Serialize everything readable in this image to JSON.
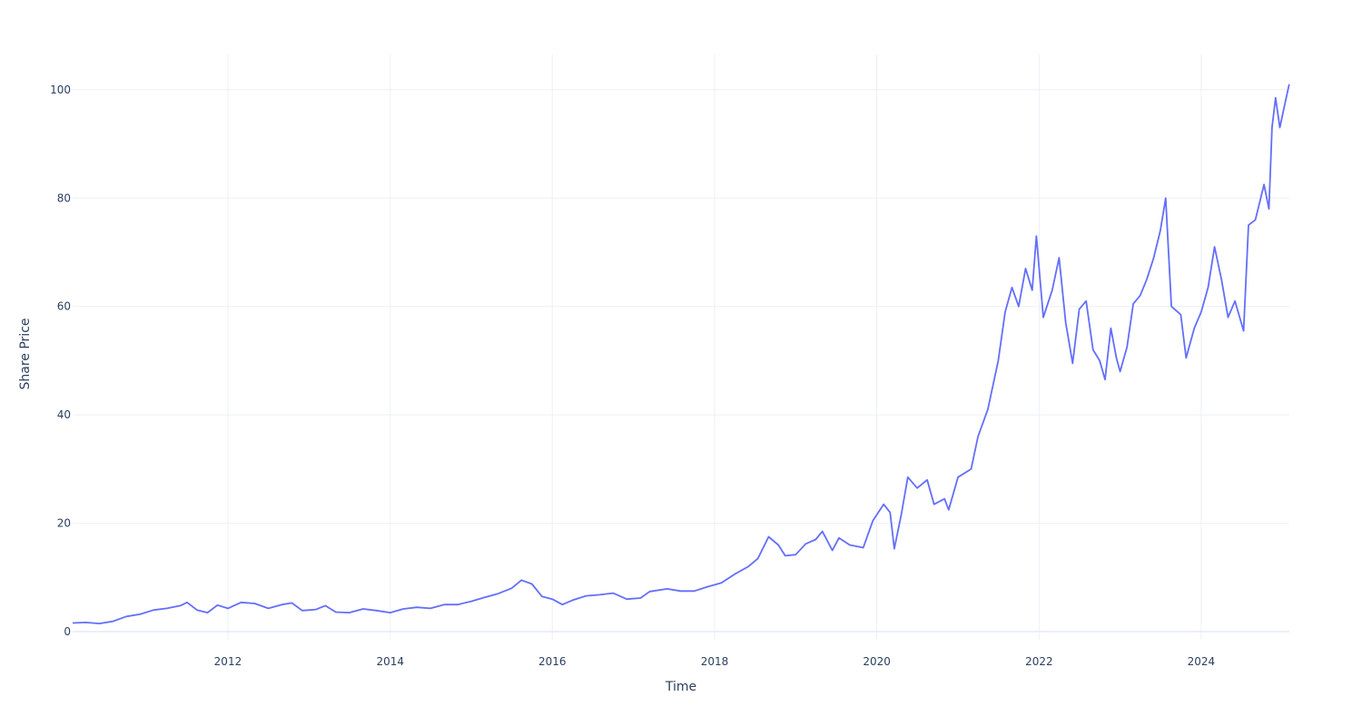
{
  "chart_data": {
    "type": "line",
    "title": "",
    "xlabel": "Time",
    "ylabel": "Share Price",
    "xlim": [
      "2010-02-01",
      "2025-02-01"
    ],
    "ylim": [
      -1.5,
      106.5
    ],
    "x_ticks": [
      "2012",
      "2014",
      "2016",
      "2018",
      "2020",
      "2022",
      "2024"
    ],
    "y_ticks": [
      "0",
      "20",
      "40",
      "60",
      "80",
      "100"
    ],
    "grid": true,
    "line_color": "#636efa",
    "series": [
      {
        "name": "",
        "points": [
          [
            "2010-02-01",
            1.6
          ],
          [
            "2010-04-01",
            1.7
          ],
          [
            "2010-06-01",
            1.5
          ],
          [
            "2010-08-01",
            1.9
          ],
          [
            "2010-10-01",
            2.8
          ],
          [
            "2010-12-01",
            3.2
          ],
          [
            "2011-02-01",
            4.0
          ],
          [
            "2011-04-01",
            4.3
          ],
          [
            "2011-06-01",
            4.8
          ],
          [
            "2011-07-01",
            5.4
          ],
          [
            "2011-08-15",
            4.0
          ],
          [
            "2011-10-01",
            3.5
          ],
          [
            "2011-11-15",
            4.9
          ],
          [
            "2012-01-01",
            4.3
          ],
          [
            "2012-03-01",
            5.4
          ],
          [
            "2012-05-01",
            5.2
          ],
          [
            "2012-07-01",
            4.3
          ],
          [
            "2012-09-01",
            5.0
          ],
          [
            "2012-10-15",
            5.3
          ],
          [
            "2012-12-01",
            3.9
          ],
          [
            "2013-02-01",
            4.1
          ],
          [
            "2013-03-15",
            4.8
          ],
          [
            "2013-05-01",
            3.6
          ],
          [
            "2013-07-01",
            3.5
          ],
          [
            "2013-09-01",
            4.2
          ],
          [
            "2013-11-01",
            3.9
          ],
          [
            "2014-01-01",
            3.5
          ],
          [
            "2014-03-01",
            4.2
          ],
          [
            "2014-05-01",
            4.5
          ],
          [
            "2014-07-01",
            4.3
          ],
          [
            "2014-09-01",
            5.0
          ],
          [
            "2014-11-01",
            5.0
          ],
          [
            "2015-01-01",
            5.6
          ],
          [
            "2015-03-01",
            6.3
          ],
          [
            "2015-05-01",
            7.0
          ],
          [
            "2015-07-01",
            8.0
          ],
          [
            "2015-08-15",
            9.5
          ],
          [
            "2015-10-01",
            8.8
          ],
          [
            "2015-11-15",
            6.5
          ],
          [
            "2016-01-01",
            6.0
          ],
          [
            "2016-02-15",
            5.0
          ],
          [
            "2016-04-01",
            5.8
          ],
          [
            "2016-06-01",
            6.6
          ],
          [
            "2016-08-01",
            6.8
          ],
          [
            "2016-10-01",
            7.1
          ],
          [
            "2016-12-01",
            6.0
          ],
          [
            "2017-02-01",
            6.2
          ],
          [
            "2017-03-15",
            7.4
          ],
          [
            "2017-06-01",
            7.9
          ],
          [
            "2017-08-01",
            7.5
          ],
          [
            "2017-10-01",
            7.5
          ],
          [
            "2017-12-01",
            8.3
          ],
          [
            "2018-02-01",
            9.0
          ],
          [
            "2018-04-01",
            10.6
          ],
          [
            "2018-06-01",
            12.0
          ],
          [
            "2018-07-15",
            13.5
          ],
          [
            "2018-09-01",
            17.5
          ],
          [
            "2018-10-15",
            16.0
          ],
          [
            "2018-11-15",
            14.0
          ],
          [
            "2019-01-01",
            14.2
          ],
          [
            "2019-02-15",
            16.2
          ],
          [
            "2019-04-01",
            17.0
          ],
          [
            "2019-05-01",
            18.5
          ],
          [
            "2019-06-15",
            15.0
          ],
          [
            "2019-07-15",
            17.3
          ],
          [
            "2019-09-01",
            16.0
          ],
          [
            "2019-11-01",
            15.5
          ],
          [
            "2019-12-15",
            20.5
          ],
          [
            "2020-02-01",
            23.5
          ],
          [
            "2020-03-01",
            22.0
          ],
          [
            "2020-03-20",
            15.3
          ],
          [
            "2020-04-20",
            21.5
          ],
          [
            "2020-05-20",
            28.5
          ],
          [
            "2020-07-01",
            26.5
          ],
          [
            "2020-08-15",
            28.0
          ],
          [
            "2020-09-15",
            23.5
          ],
          [
            "2020-11-01",
            24.5
          ],
          [
            "2020-11-20",
            22.5
          ],
          [
            "2021-01-01",
            28.5
          ],
          [
            "2021-03-01",
            30.0
          ],
          [
            "2021-04-01",
            36.0
          ],
          [
            "2021-05-15",
            41.0
          ],
          [
            "2021-07-01",
            50.0
          ],
          [
            "2021-08-01",
            59.0
          ],
          [
            "2021-09-01",
            63.5
          ],
          [
            "2021-10-01",
            60.0
          ],
          [
            "2021-11-01",
            67.0
          ],
          [
            "2021-12-01",
            63.0
          ],
          [
            "2021-12-20",
            73.0
          ],
          [
            "2022-01-20",
            58.0
          ],
          [
            "2022-03-01",
            63.0
          ],
          [
            "2022-04-01",
            69.0
          ],
          [
            "2022-05-01",
            57.0
          ],
          [
            "2022-06-01",
            49.5
          ],
          [
            "2022-07-01",
            59.5
          ],
          [
            "2022-08-01",
            61.0
          ],
          [
            "2022-09-01",
            52.0
          ],
          [
            "2022-10-01",
            50.0
          ],
          [
            "2022-10-25",
            46.5
          ],
          [
            "2022-11-20",
            56.0
          ],
          [
            "2022-12-15",
            50.5
          ],
          [
            "2023-01-01",
            48.0
          ],
          [
            "2023-02-01",
            52.5
          ],
          [
            "2023-03-01",
            60.5
          ],
          [
            "2023-04-01",
            62.0
          ],
          [
            "2023-05-01",
            65.0
          ],
          [
            "2023-06-01",
            69.0
          ],
          [
            "2023-07-01",
            74.0
          ],
          [
            "2023-07-25",
            80.0
          ],
          [
            "2023-08-20",
            60.0
          ],
          [
            "2023-10-01",
            58.5
          ],
          [
            "2023-10-25",
            50.5
          ],
          [
            "2023-12-01",
            56.0
          ],
          [
            "2024-01-01",
            59.0
          ],
          [
            "2024-02-01",
            63.5
          ],
          [
            "2024-03-01",
            71.0
          ],
          [
            "2024-04-01",
            65.0
          ],
          [
            "2024-05-01",
            58.0
          ],
          [
            "2024-06-01",
            61.0
          ],
          [
            "2024-07-10",
            55.5
          ],
          [
            "2024-08-01",
            75.0
          ],
          [
            "2024-09-01",
            76.0
          ],
          [
            "2024-10-10",
            82.5
          ],
          [
            "2024-11-01",
            78.0
          ],
          [
            "2024-11-15",
            93.0
          ],
          [
            "2024-12-01",
            98.5
          ],
          [
            "2024-12-20",
            93.0
          ],
          [
            "2025-01-10",
            97.0
          ],
          [
            "2025-01-31",
            101.0
          ]
        ]
      }
    ]
  }
}
